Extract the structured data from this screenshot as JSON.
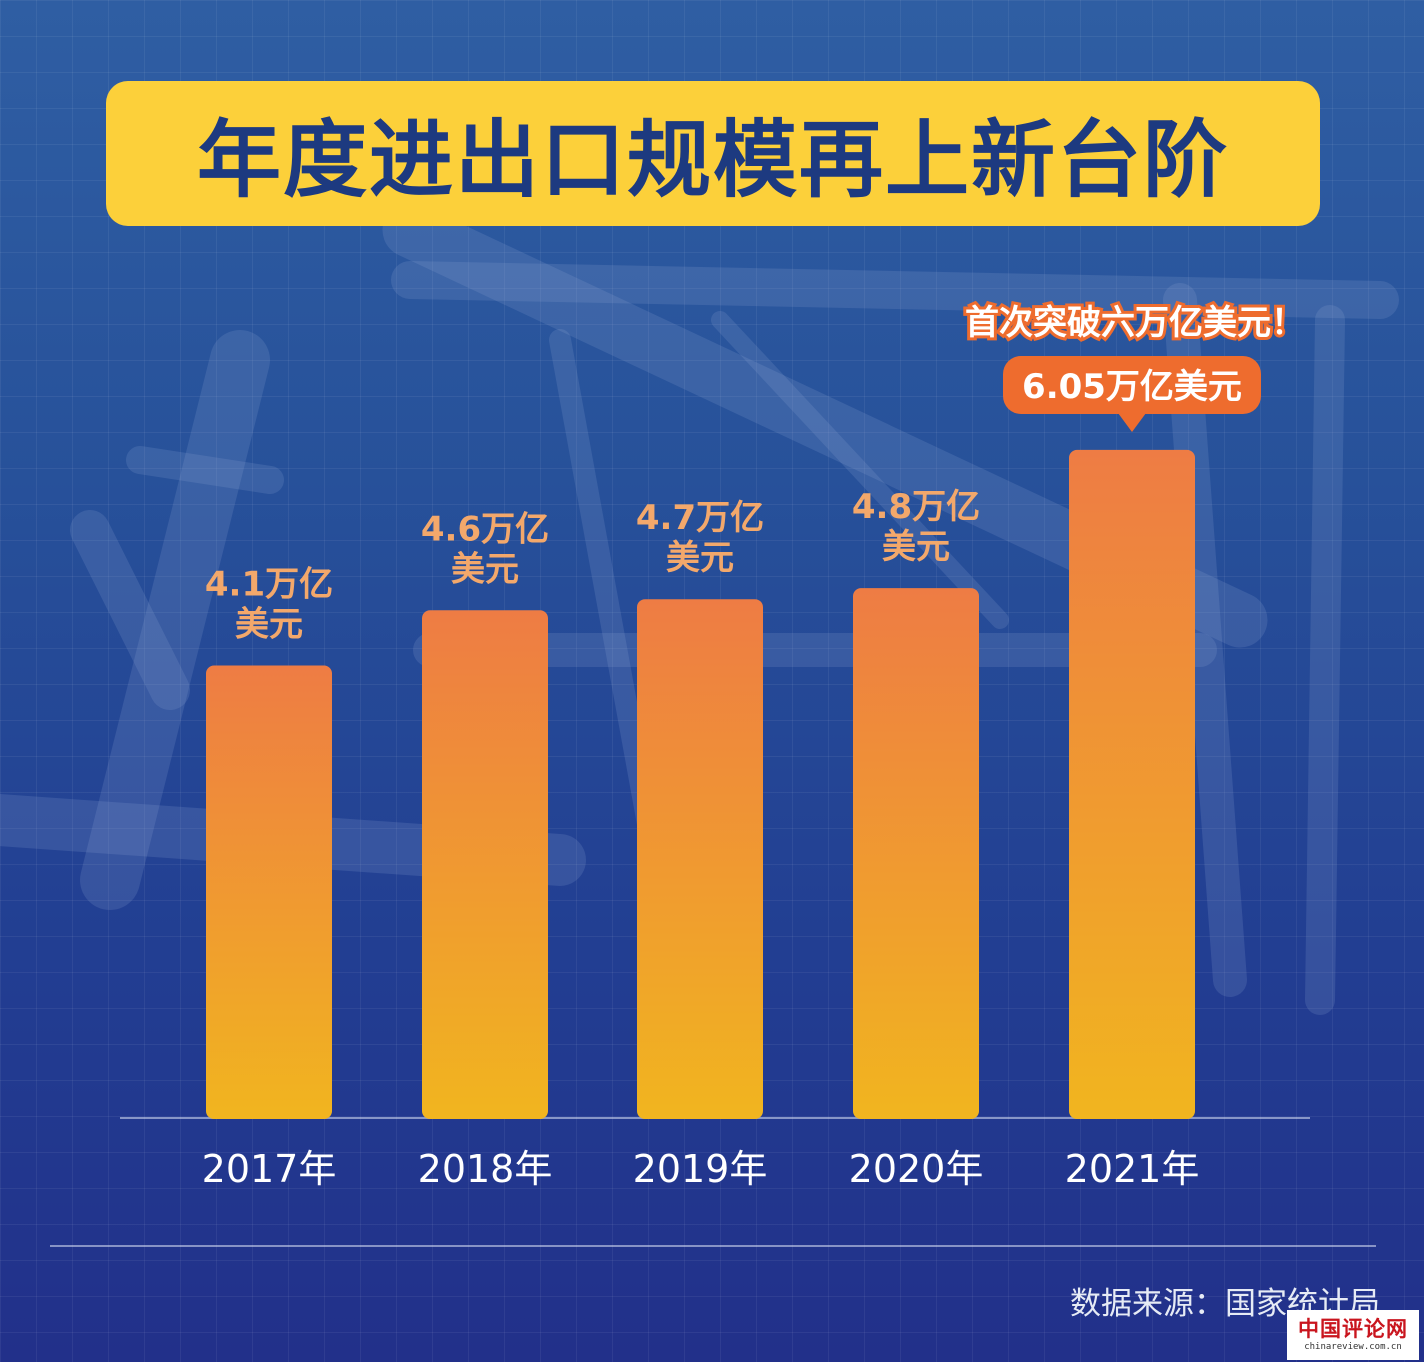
{
  "chart_data": {
    "type": "bar",
    "title": "年度进出口规模再上新台阶",
    "categories": [
      "2017年",
      "2018年",
      "2019年",
      "2020年",
      "2021年"
    ],
    "values": [
      4.1,
      4.6,
      4.7,
      4.8,
      6.05
    ],
    "data_labels": [
      [
        "4.1万亿",
        "美元"
      ],
      [
        "4.6万亿",
        "美元"
      ],
      [
        "4.7万亿",
        "美元"
      ],
      [
        "4.8万亿",
        "美元"
      ],
      [
        "6.05万亿美元"
      ]
    ],
    "unit": "万亿美元",
    "annotation": "首次突破六万亿美元！",
    "ylim": [
      0,
      6.7
    ],
    "grid": true,
    "legend": "none"
  },
  "source": "数据来源：国家统计局",
  "watermark": {
    "name": "中国评论网",
    "url": "chinareview.com.cn"
  },
  "colors": {
    "background": "#27519a",
    "title_box": "#fcd03a",
    "title_text": "#1d3a80",
    "bar_top": "#ee7c44",
    "bar_bottom": "#f1b51f",
    "label_text": "#f3a86b",
    "callout": "#ee6c2e"
  }
}
